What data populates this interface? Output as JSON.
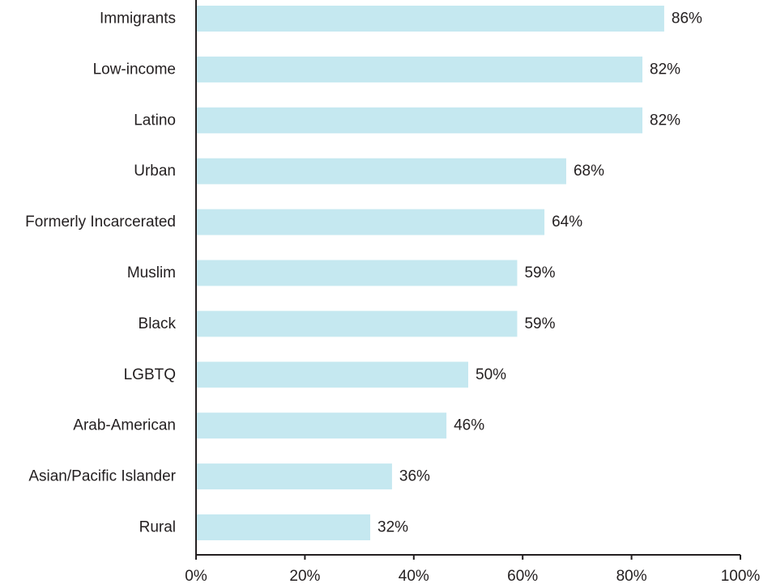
{
  "chart_data": {
    "type": "bar",
    "orientation": "horizontal",
    "categories": [
      "Immigrants",
      "Low-income",
      "Latino",
      "Urban",
      "Formerly Incarcerated",
      "Muslim",
      "Black",
      "LGBTQ",
      "Arab-American",
      "Asian/Pacific Islander",
      "Rural"
    ],
    "values": [
      86,
      82,
      82,
      68,
      64,
      59,
      59,
      50,
      46,
      36,
      32
    ],
    "value_labels": [
      "86%",
      "82%",
      "82%",
      "68%",
      "64%",
      "59%",
      "59%",
      "50%",
      "46%",
      "36%",
      "32%"
    ],
    "xlim": [
      0,
      100
    ],
    "x_ticks": [
      0,
      20,
      40,
      60,
      80,
      100
    ],
    "x_tick_labels": [
      "0%",
      "20%",
      "40%",
      "60%",
      "80%",
      "100%"
    ],
    "title": "",
    "xlabel": "",
    "ylabel": "",
    "grid": false,
    "bar_color": "#c5e8f0",
    "axis_color": "#231f20",
    "text_color": "#231f20"
  }
}
